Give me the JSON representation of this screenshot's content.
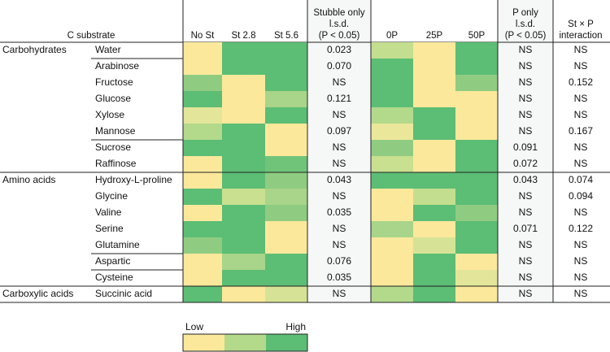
{
  "header": {
    "substrate": "C substrate",
    "stubble": [
      "No St",
      "St 2.8",
      "St 5.6"
    ],
    "stubble_lsd": [
      "Stubble only",
      "l.s.d.",
      "(P < 0.05)"
    ],
    "p_levels": [
      "0P",
      "25P",
      "50P"
    ],
    "p_lsd": [
      "P only",
      "l.s.d.",
      "(P < 0.05)"
    ],
    "interaction": [
      "St × P",
      "interaction"
    ]
  },
  "groups": [
    {
      "label": "Carbohydrates",
      "rows": 8
    },
    {
      "label": "Amino acids",
      "rows": 7
    },
    {
      "label": "Carboxylic acids",
      "rows": 1
    }
  ],
  "rows": [
    {
      "name": "Water",
      "stubble_colors": [
        "#fbe89b",
        "#5cbd75",
        "#5cbd75"
      ],
      "stubble_lsd": "0.023",
      "p_colors": [
        "#c3de8f",
        "#fbe89b",
        "#5cbd75"
      ],
      "p_lsd": "NS",
      "interaction": "NS"
    },
    {
      "name": "Arabinose",
      "stubble_colors": [
        "#fbe89b",
        "#5cbd75",
        "#5cbd75"
      ],
      "stubble_lsd": "0.070",
      "p_colors": [
        "#5cbd75",
        "#fbe89b",
        "#5cbd75"
      ],
      "p_lsd": "NS",
      "interaction": "NS"
    },
    {
      "name": "Fructose",
      "stubble_colors": [
        "#8fcc82",
        "#fbe89b",
        "#5cbd75"
      ],
      "stubble_lsd": "NS",
      "p_colors": [
        "#5cbd75",
        "#fbe89b",
        "#8fcc82"
      ],
      "p_lsd": "NS",
      "interaction": "0.152"
    },
    {
      "name": "Glucose",
      "stubble_colors": [
        "#5cbd75",
        "#fbe89b",
        "#a8d589"
      ],
      "stubble_lsd": "0.121",
      "p_colors": [
        "#5cbd75",
        "#fbe89b",
        "#fbe89b"
      ],
      "p_lsd": "NS",
      "interaction": "NS"
    },
    {
      "name": "Xylose",
      "stubble_colors": [
        "#e3e69a",
        "#fbe89b",
        "#5cbd75"
      ],
      "stubble_lsd": "NS",
      "p_colors": [
        "#b3d98b",
        "#5cbd75",
        "#fbe89b"
      ],
      "p_lsd": "NS",
      "interaction": "NS"
    },
    {
      "name": "Mannose",
      "stubble_colors": [
        "#b3d98b",
        "#5cbd75",
        "#fbe89b"
      ],
      "stubble_lsd": "0.097",
      "p_colors": [
        "#ebe79a",
        "#5cbd75",
        "#fbe89b"
      ],
      "p_lsd": "NS",
      "interaction": "0.167"
    },
    {
      "name": "Sucrose",
      "stubble_colors": [
        "#5cbd75",
        "#5cbd75",
        "#fbe89b"
      ],
      "stubble_lsd": "NS",
      "p_colors": [
        "#8fcc82",
        "#fbe89b",
        "#5cbd75"
      ],
      "p_lsd": "0.091",
      "interaction": "NS"
    },
    {
      "name": "Raffinose",
      "stubble_colors": [
        "#fbe89b",
        "#5cbd75",
        "#6fc47a"
      ],
      "stubble_lsd": "NS",
      "p_colors": [
        "#c8e08f",
        "#fbe89b",
        "#5cbd75"
      ],
      "p_lsd": "0.072",
      "interaction": "NS"
    },
    {
      "name": "Hydroxy-L-proline",
      "stubble_colors": [
        "#fbe89b",
        "#5cbd75",
        "#8fcc82"
      ],
      "stubble_lsd": "0.043",
      "p_colors": [
        "#5cbd75",
        "#5cbd75",
        "#5cbd75"
      ],
      "p_lsd": "0.043",
      "interaction": "0.074"
    },
    {
      "name": "Glycine",
      "stubble_colors": [
        "#5cbd75",
        "#c8e08f",
        "#a8d589"
      ],
      "stubble_lsd": "NS",
      "p_colors": [
        "#fbe89b",
        "#c3de8f",
        "#5cbd75"
      ],
      "p_lsd": "NS",
      "interaction": "0.094"
    },
    {
      "name": "Valine",
      "stubble_colors": [
        "#fbe89b",
        "#5cbd75",
        "#8fcc82"
      ],
      "stubble_lsd": "0.035",
      "p_colors": [
        "#fbe89b",
        "#5cbd75",
        "#8fcc82"
      ],
      "p_lsd": "NS",
      "interaction": "NS"
    },
    {
      "name": "Serine",
      "stubble_colors": [
        "#5cbd75",
        "#5cbd75",
        "#fbe89b"
      ],
      "stubble_lsd": "NS",
      "p_colors": [
        "#a8d589",
        "#fbe89b",
        "#5cbd75"
      ],
      "p_lsd": "0.071",
      "interaction": "0.122"
    },
    {
      "name": "Glutamine",
      "stubble_colors": [
        "#8fcc82",
        "#5cbd75",
        "#fbe89b"
      ],
      "stubble_lsd": "NS",
      "p_colors": [
        "#fbe89b",
        "#d6e396",
        "#5cbd75"
      ],
      "p_lsd": "NS",
      "interaction": "NS"
    },
    {
      "name": "Aspartic",
      "stubble_colors": [
        "#fbe89b",
        "#a8d589",
        "#5cbd75"
      ],
      "stubble_lsd": "0.076",
      "p_colors": [
        "#fbe89b",
        "#5cbd75",
        "#fbe89b"
      ],
      "p_lsd": "NS",
      "interaction": "NS"
    },
    {
      "name": "Cysteine",
      "stubble_colors": [
        "#fbe89b",
        "#5cbd75",
        "#5cbd75"
      ],
      "stubble_lsd": "0.035",
      "p_colors": [
        "#fbe89b",
        "#5cbd75",
        "#e3e69a"
      ],
      "p_lsd": "NS",
      "interaction": "NS"
    },
    {
      "name": "Succinic acid",
      "stubble_colors": [
        "#5cbd75",
        "#fbe89b",
        "#d6e396"
      ],
      "stubble_lsd": "NS",
      "p_colors": [
        "#b3d98b",
        "#5cbd75",
        "#fbe89b"
      ],
      "p_lsd": "NS",
      "interaction": "NS"
    }
  ],
  "legend": {
    "low": "Low",
    "high": "High",
    "colors": [
      "#fbe89b",
      "#b3d98b",
      "#5cbd75"
    ]
  }
}
